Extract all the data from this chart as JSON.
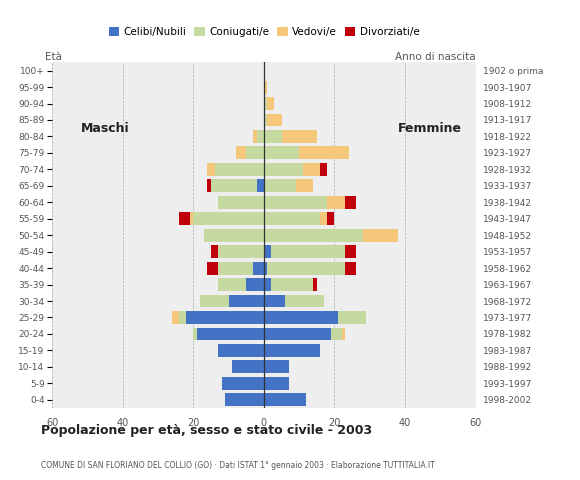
{
  "age_groups": [
    "0-4",
    "5-9",
    "10-14",
    "15-19",
    "20-24",
    "25-29",
    "30-34",
    "35-39",
    "40-44",
    "45-49",
    "50-54",
    "55-59",
    "60-64",
    "65-69",
    "70-74",
    "75-79",
    "80-84",
    "85-89",
    "90-94",
    "95-99",
    "100+"
  ],
  "birth_years": [
    "1998-2002",
    "1993-1997",
    "1988-1992",
    "1983-1987",
    "1978-1982",
    "1973-1977",
    "1968-1972",
    "1963-1967",
    "1958-1962",
    "1953-1957",
    "1948-1952",
    "1943-1947",
    "1938-1942",
    "1933-1937",
    "1928-1932",
    "1923-1927",
    "1918-1922",
    "1913-1917",
    "1908-1912",
    "1903-1907",
    "1902 o prima"
  ],
  "male_celibe": [
    11,
    12,
    9,
    13,
    19,
    22,
    10,
    5,
    3,
    0,
    0,
    0,
    0,
    2,
    0,
    0,
    0,
    0,
    0,
    0,
    0
  ],
  "male_coniugato": [
    0,
    0,
    0,
    0,
    1,
    2,
    8,
    8,
    10,
    13,
    17,
    20,
    13,
    13,
    14,
    5,
    2,
    0,
    0,
    0,
    0
  ],
  "male_vedovo": [
    0,
    0,
    0,
    0,
    0,
    2,
    0,
    0,
    0,
    0,
    0,
    1,
    0,
    0,
    2,
    3,
    1,
    0,
    0,
    0,
    0
  ],
  "male_divorziato": [
    0,
    0,
    0,
    0,
    0,
    0,
    0,
    0,
    3,
    2,
    0,
    3,
    0,
    1,
    0,
    0,
    0,
    0,
    0,
    0,
    0
  ],
  "female_celibe": [
    12,
    7,
    7,
    16,
    19,
    21,
    6,
    2,
    1,
    2,
    0,
    0,
    0,
    0,
    0,
    0,
    0,
    0,
    0,
    0,
    0
  ],
  "female_coniugato": [
    0,
    0,
    0,
    0,
    3,
    8,
    11,
    12,
    22,
    21,
    28,
    16,
    18,
    9,
    11,
    10,
    5,
    1,
    1,
    0,
    0
  ],
  "female_vedovo": [
    0,
    0,
    0,
    0,
    1,
    0,
    0,
    0,
    0,
    0,
    10,
    2,
    5,
    5,
    5,
    14,
    10,
    4,
    2,
    1,
    0
  ],
  "female_divorziato": [
    0,
    0,
    0,
    0,
    0,
    0,
    0,
    1,
    3,
    3,
    0,
    2,
    3,
    0,
    2,
    0,
    0,
    0,
    0,
    0,
    0
  ],
  "colors": {
    "celibe": "#4472C4",
    "coniugato": "#C5D9A0",
    "vedovo": "#F5C77A",
    "divorziato": "#C0000A"
  },
  "legend_labels": [
    "Celibi/Nubili",
    "Coniugati/e",
    "Vedovi/e",
    "Divorziati/e"
  ],
  "title": "Popolazione per età, sesso e stato civile - 2003",
  "subtitle": "COMUNE DI SAN FLORIANO DEL COLLIO (GO) · Dati ISTAT 1° gennaio 2003 · Elaborazione TUTTITALIA.IT",
  "label_eta": "Età",
  "label_anno": "Anno di nascita",
  "label_maschi": "Maschi",
  "label_femmine": "Femmine",
  "xlim": 60,
  "background_color": "#ffffff",
  "plot_background": "#eeeeee"
}
